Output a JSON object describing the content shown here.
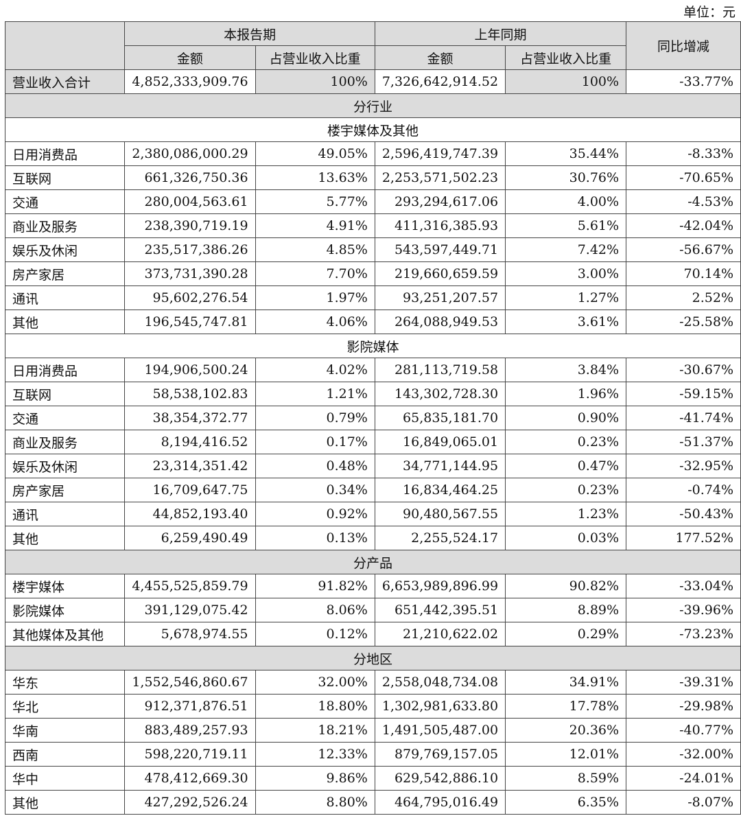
{
  "unit_label": "单位：元",
  "header": {
    "current_period": "本报告期",
    "prior_period": "上年同期",
    "yoy": "同比增减",
    "amount": "金额",
    "ratio": "占营业收入比重"
  },
  "total": {
    "label": "营业收入合计",
    "amount_current": "4,852,333,909.76",
    "ratio_current": "100%",
    "amount_prior": "7,326,642,914.52",
    "ratio_prior": "100%",
    "yoy": "-33.77%"
  },
  "sections": [
    {
      "title": "分行业",
      "subsections": [
        {
          "title": "楼宇媒体及其他",
          "rows": [
            [
              "日用消费品",
              "2,380,086,000.29",
              "49.05%",
              "2,596,419,747.39",
              "35.44%",
              "-8.33%"
            ],
            [
              "互联网",
              "661,326,750.36",
              "13.63%",
              "2,253,571,502.23",
              "30.76%",
              "-70.65%"
            ],
            [
              "交通",
              "280,004,563.61",
              "5.77%",
              "293,294,617.06",
              "4.00%",
              "-4.53%"
            ],
            [
              "商业及服务",
              "238,390,719.19",
              "4.91%",
              "411,316,385.93",
              "5.61%",
              "-42.04%"
            ],
            [
              "娱乐及休闲",
              "235,517,386.26",
              "4.85%",
              "543,597,449.71",
              "7.42%",
              "-56.67%"
            ],
            [
              "房产家居",
              "373,731,390.28",
              "7.70%",
              "219,660,659.59",
              "3.00%",
              "70.14%"
            ],
            [
              "通讯",
              "95,602,276.54",
              "1.97%",
              "93,251,207.57",
              "1.27%",
              "2.52%"
            ],
            [
              "其他",
              "196,545,747.81",
              "4.06%",
              "264,088,949.53",
              "3.61%",
              "-25.58%"
            ]
          ]
        },
        {
          "title": "影院媒体",
          "rows": [
            [
              "日用消费品",
              "194,906,500.24",
              "4.02%",
              "281,113,719.58",
              "3.84%",
              "-30.67%"
            ],
            [
              "互联网",
              "58,538,102.83",
              "1.21%",
              "143,302,728.30",
              "1.96%",
              "-59.15%"
            ],
            [
              "交通",
              "38,354,372.77",
              "0.79%",
              "65,835,181.70",
              "0.90%",
              "-41.74%"
            ],
            [
              "商业及服务",
              "8,194,416.52",
              "0.17%",
              "16,849,065.01",
              "0.23%",
              "-51.37%"
            ],
            [
              "娱乐及休闲",
              "23,314,351.42",
              "0.48%",
              "34,771,144.95",
              "0.47%",
              "-32.95%"
            ],
            [
              "房产家居",
              "16,709,647.75",
              "0.34%",
              "16,834,464.25",
              "0.23%",
              "-0.74%"
            ],
            [
              "通讯",
              "44,852,193.40",
              "0.92%",
              "90,480,567.55",
              "1.23%",
              "-50.43%"
            ],
            [
              "其他",
              "6,259,490.49",
              "0.13%",
              "2,255,524.17",
              "0.03%",
              "177.52%"
            ]
          ]
        }
      ]
    },
    {
      "title": "分产品",
      "subsections": [
        {
          "title": "",
          "rows": [
            [
              "楼宇媒体",
              "4,455,525,859.79",
              "91.82%",
              "6,653,989,896.99",
              "90.82%",
              "-33.04%"
            ],
            [
              "影院媒体",
              "391,129,075.42",
              "8.06%",
              "651,442,395.51",
              "8.89%",
              "-39.96%"
            ],
            [
              "其他媒体及其他",
              "5,678,974.55",
              "0.12%",
              "21,210,622.02",
              "0.29%",
              "-73.23%"
            ]
          ]
        }
      ]
    },
    {
      "title": "分地区",
      "subsections": [
        {
          "title": "",
          "rows": [
            [
              "华东",
              "1,552,546,860.67",
              "32.00%",
              "2,558,048,734.08",
              "34.91%",
              "-39.31%"
            ],
            [
              "华北",
              "912,371,876.51",
              "18.80%",
              "1,302,981,633.80",
              "17.78%",
              "-29.98%"
            ],
            [
              "华南",
              "883,489,257.93",
              "18.21%",
              "1,491,505,487.00",
              "20.36%",
              "-40.77%"
            ],
            [
              "西南",
              "598,220,719.11",
              "12.33%",
              "879,769,157.05",
              "12.01%",
              "-32.00%"
            ],
            [
              "华中",
              "478,412,669.30",
              "9.86%",
              "629,542,886.10",
              "8.59%",
              "-24.01%"
            ],
            [
              "其他",
              "427,292,526.24",
              "8.80%",
              "464,795,016.49",
              "6.35%",
              "-8.07%"
            ]
          ]
        }
      ]
    }
  ]
}
